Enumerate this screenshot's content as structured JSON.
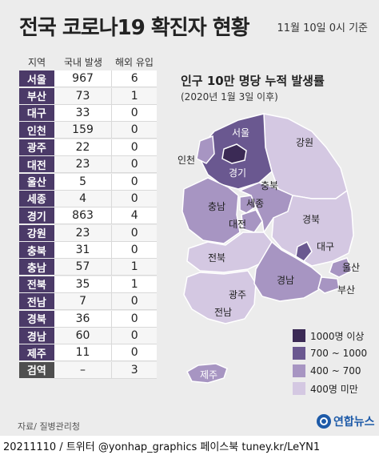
{
  "header": {
    "title": "전국 코로나19 확진자 현황",
    "timestamp": "11월 10일 0시 기준"
  },
  "table": {
    "columns": [
      "지역",
      "국내 발생",
      "해외 유입"
    ],
    "rows": [
      {
        "region": "서울",
        "domestic": "967",
        "imported": "6"
      },
      {
        "region": "부산",
        "domestic": "73",
        "imported": "1"
      },
      {
        "region": "대구",
        "domestic": "33",
        "imported": "0"
      },
      {
        "region": "인천",
        "domestic": "159",
        "imported": "0"
      },
      {
        "region": "광주",
        "domestic": "22",
        "imported": "0"
      },
      {
        "region": "대전",
        "domestic": "23",
        "imported": "0"
      },
      {
        "region": "울산",
        "domestic": "5",
        "imported": "0"
      },
      {
        "region": "세종",
        "domestic": "4",
        "imported": "0"
      },
      {
        "region": "경기",
        "domestic": "863",
        "imported": "4"
      },
      {
        "region": "강원",
        "domestic": "23",
        "imported": "0"
      },
      {
        "region": "충북",
        "domestic": "31",
        "imported": "0"
      },
      {
        "region": "충남",
        "domestic": "57",
        "imported": "1"
      },
      {
        "region": "전북",
        "domestic": "35",
        "imported": "1"
      },
      {
        "region": "전남",
        "domestic": "7",
        "imported": "0"
      },
      {
        "region": "경북",
        "domestic": "36",
        "imported": "0"
      },
      {
        "region": "경남",
        "domestic": "60",
        "imported": "0"
      },
      {
        "region": "제주",
        "domestic": "11",
        "imported": "0"
      },
      {
        "region": "검역",
        "domestic": "–",
        "imported": "3"
      }
    ]
  },
  "map": {
    "title": "인구 10만 명당 누적 발생률",
    "subtitle": "(2020년 1월 3일 이후)",
    "labels": {
      "seoul": "서울",
      "incheon": "인천",
      "gyeonggi": "경기",
      "gangwon": "강원",
      "chungbuk": "충북",
      "chungnam": "충남",
      "sejong": "세종",
      "daejeon": "대전",
      "gyeongbuk": "경북",
      "daegu": "대구",
      "jeonbuk": "전북",
      "gwangju": "광주",
      "jeonnam": "전남",
      "gyeongnam": "경남",
      "ulsan": "울산",
      "busan": "부산",
      "jeju": "제주"
    },
    "colors": {
      "tier1": "#3b2a55",
      "tier2": "#6a5890",
      "tier3": "#a795c2",
      "tier4": "#d4c8e2"
    },
    "legend": [
      {
        "label": "1000명 이상",
        "color": "#3b2a55"
      },
      {
        "label": "700 ~ 1000",
        "color": "#6a5890"
      },
      {
        "label": "400 ~ 700",
        "color": "#a795c2"
      },
      {
        "label": "400명 미만",
        "color": "#d4c8e2"
      }
    ]
  },
  "source": "자료/ 질병관리청",
  "logo": "연합뉴스",
  "footer": "20211110 / 트위터 @yonhap_graphics  페이스북 tuney.kr/LeYN1"
}
